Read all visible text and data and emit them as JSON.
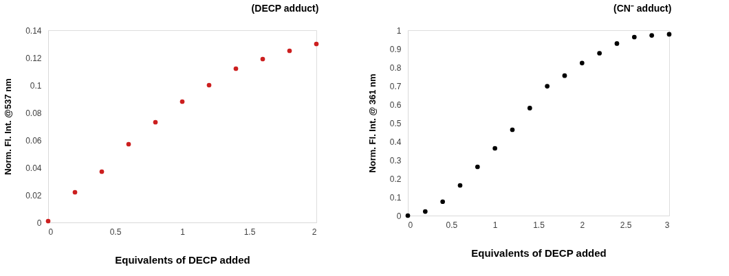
{
  "chart_data": [
    {
      "type": "scatter",
      "title": "(DECP adduct)",
      "xlabel": "Equivalents of DECP added",
      "ylabel": "Norm. Fl. Int. @537 nm",
      "x": [
        0,
        0.2,
        0.4,
        0.6,
        0.8,
        1.0,
        1.2,
        1.4,
        1.6,
        1.8,
        2.0
      ],
      "series": [
        {
          "color": "#cc1f1f",
          "values": [
            0.001,
            0.022,
            0.037,
            0.057,
            0.073,
            0.088,
            0.1,
            0.112,
            0.119,
            0.125,
            0.13
          ]
        }
      ],
      "xlim": [
        0,
        2
      ],
      "xticks": [
        0,
        0.5,
        1,
        1.5,
        2
      ],
      "ylim": [
        0,
        0.14
      ],
      "yticks": [
        0,
        0.02,
        0.04,
        0.06,
        0.08,
        0.1,
        0.12,
        0.14
      ],
      "grid": false,
      "marker": "circle"
    },
    {
      "type": "scatter",
      "title": "(CN⁻ adduct)",
      "xlabel": "Equivalents of DECP added",
      "ylabel": "Norm. Fl. Int. @ 361 nm",
      "x": [
        0,
        0.2,
        0.4,
        0.6,
        0.8,
        1.0,
        1.2,
        1.4,
        1.6,
        1.8,
        2.0,
        2.2,
        2.4,
        2.6,
        2.8,
        3.0
      ],
      "series": [
        {
          "color": "#000000",
          "values": [
            0.0,
            0.022,
            0.075,
            0.163,
            0.263,
            0.363,
            0.463,
            0.58,
            0.698,
            0.755,
            0.823,
            0.876,
            0.928,
            0.963,
            0.972,
            0.978
          ]
        }
      ],
      "xlim": [
        0,
        3
      ],
      "xticks": [
        0,
        0.5,
        1,
        1.5,
        2,
        2.5,
        3
      ],
      "ylim": [
        0,
        1
      ],
      "yticks": [
        0,
        0.1,
        0.2,
        0.3,
        0.4,
        0.5,
        0.6,
        0.7,
        0.8,
        0.9,
        1
      ],
      "grid": false,
      "marker": "circle"
    }
  ]
}
